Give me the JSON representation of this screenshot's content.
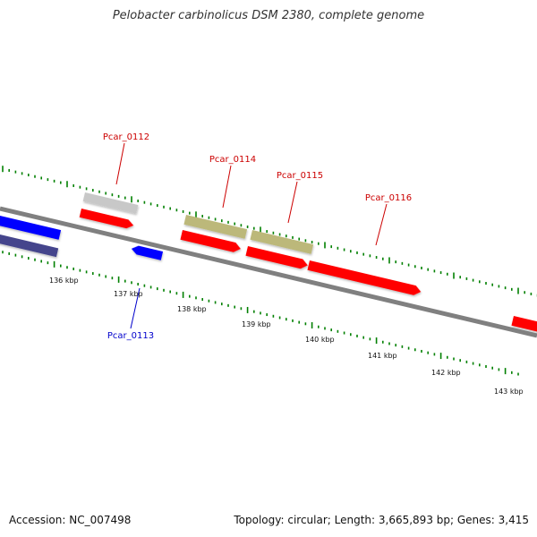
{
  "title": "Pelobacter carbinolicus DSM 2380, complete genome",
  "footer": {
    "accession": "Accession: NC_007498",
    "stats": "Topology: circular; Length: 3,665,893 bp; Genes: 3,415"
  },
  "colors": {
    "background": "#ffffff",
    "backbone": "#808080",
    "forward_cds": "#ff0000",
    "reverse_cds": "#0000ff",
    "reverse_dark": "#44448c",
    "pseudo_grey": "#c8c8c8",
    "olive": "#bcb87a",
    "tick_green": "#008000",
    "label_forward": "#cc0000",
    "label_reverse": "#0000cc"
  },
  "scale": {
    "tick_labels": [
      "136 kbp",
      "137 kbp",
      "138 kbp",
      "139 kbp",
      "140 kbp",
      "141 kbp",
      "142 kbp",
      "143 kbp"
    ]
  },
  "genes": {
    "labels": [
      {
        "name": "Pcar_0112",
        "strand": "forward"
      },
      {
        "name": "Pcar_0114",
        "strand": "forward"
      },
      {
        "name": "Pcar_0115",
        "strand": "forward"
      },
      {
        "name": "Pcar_0116",
        "strand": "forward"
      },
      {
        "name": "Pcar_0113",
        "strand": "reverse"
      }
    ]
  }
}
